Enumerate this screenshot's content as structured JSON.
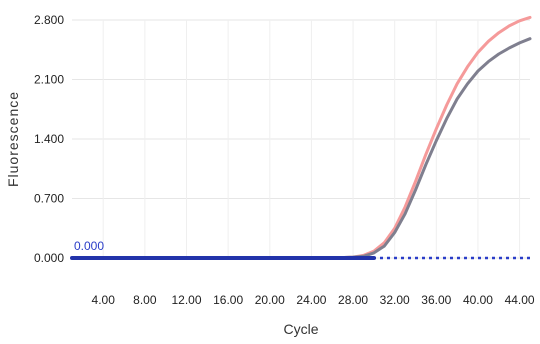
{
  "chart_data": {
    "type": "line",
    "xlabel": "Cycle",
    "ylabel": "Fluorescence",
    "xlim": [
      1,
      45
    ],
    "ylim": [
      0,
      2.8
    ],
    "x_ticks": [
      4,
      8,
      12,
      16,
      20,
      24,
      28,
      32,
      36,
      40,
      44
    ],
    "x_tick_labels": [
      "4.00",
      "8.00",
      "12.00",
      "16.00",
      "20.00",
      "24.00",
      "28.00",
      "32.00",
      "36.00",
      "40.00",
      "44.00"
    ],
    "y_ticks": [
      0,
      0.7,
      1.4,
      2.1,
      2.8
    ],
    "y_tick_labels": [
      "0.000",
      "0.700",
      "1.400",
      "2.100",
      "2.800"
    ],
    "grid": true,
    "threshold": {
      "value": 0,
      "label": "0.000",
      "color": "#2a3dc8"
    },
    "series": [
      {
        "color": "#f59a9a",
        "x": [
          1,
          26,
          28,
          29,
          30,
          31,
          32,
          33,
          34,
          35,
          36,
          37,
          38,
          39,
          40,
          41,
          42,
          43,
          44,
          45
        ],
        "values": [
          0,
          0,
          0.01,
          0.03,
          0.08,
          0.18,
          0.35,
          0.6,
          0.9,
          1.22,
          1.52,
          1.8,
          2.05,
          2.25,
          2.42,
          2.55,
          2.65,
          2.73,
          2.79,
          2.83
        ]
      },
      {
        "color": "#7f7f8f",
        "x": [
          1,
          26,
          28,
          29,
          30,
          31,
          32,
          33,
          34,
          35,
          36,
          37,
          38,
          39,
          40,
          41,
          42,
          43,
          44,
          45
        ],
        "values": [
          0,
          0,
          0.01,
          0.02,
          0.06,
          0.14,
          0.3,
          0.52,
          0.8,
          1.1,
          1.38,
          1.64,
          1.87,
          2.05,
          2.2,
          2.31,
          2.4,
          2.47,
          2.53,
          2.58
        ]
      },
      {
        "color": "#2233aa",
        "x": [
          1,
          30
        ],
        "values": [
          0,
          0
        ]
      }
    ]
  }
}
